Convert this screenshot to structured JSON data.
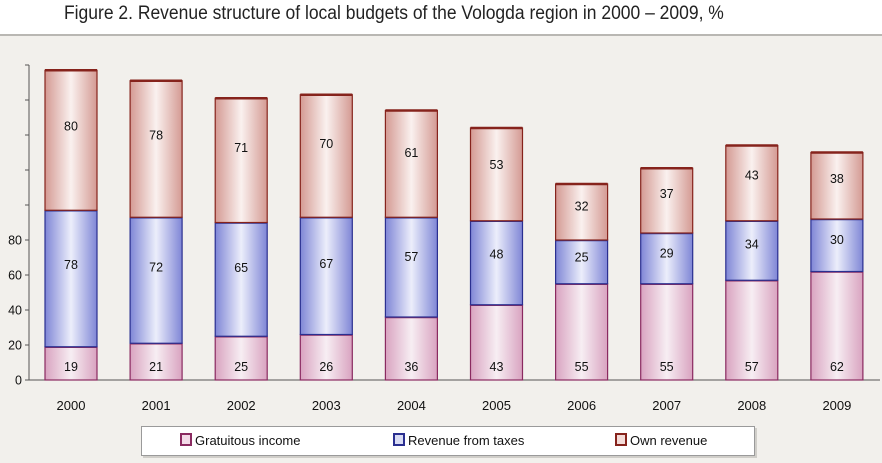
{
  "title": "Figure 2.  Revenue structure of local budgets of the Vologda region in 2000 – 2009, %",
  "colors": {
    "gratuitous_fill": "#a8437a",
    "gratuitous_edge": "#8a2a60",
    "taxes_fill": "#3942b0",
    "taxes_edge": "#2a2f90",
    "own_fill": "#9a2e26",
    "own_edge": "#86231c"
  },
  "chart_data": {
    "type": "bar",
    "stacked": true,
    "categories": [
      "2000",
      "2001",
      "2002",
      "2003",
      "2004",
      "2005",
      "2006",
      "2007",
      "2008",
      "2009"
    ],
    "series": [
      {
        "name": "Gratuitous income",
        "values": [
          19,
          21,
          25,
          26,
          36,
          43,
          55,
          55,
          57,
          62
        ]
      },
      {
        "name": "Revenue from taxes",
        "values": [
          78,
          72,
          65,
          67,
          57,
          48,
          25,
          29,
          34,
          30
        ]
      },
      {
        "name": "Own revenue",
        "values": [
          80,
          78,
          71,
          70,
          61,
          53,
          32,
          37,
          43,
          38
        ]
      }
    ],
    "y_tick_labels": [
      "0",
      "20",
      "40",
      "60",
      "80"
    ],
    "ylim": [
      0,
      180
    ],
    "legend_position": "bottom"
  },
  "legend": {
    "gratuitous": "Gratuitous income",
    "taxes": "Revenue from taxes",
    "own": "Own revenue"
  }
}
